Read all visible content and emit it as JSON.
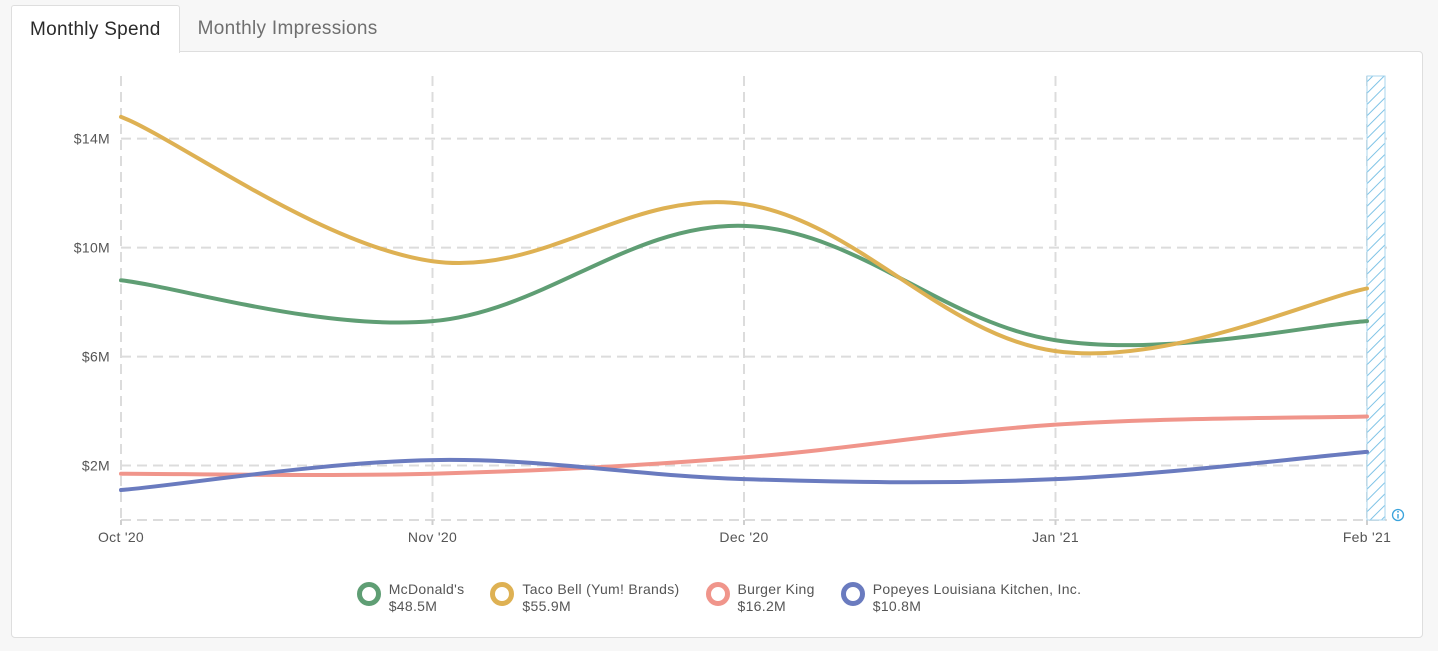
{
  "tabs": [
    {
      "label": "Monthly Spend",
      "active": true
    },
    {
      "label": "Monthly Impressions",
      "active": false
    }
  ],
  "info_icon": "info-icon",
  "chart_data": {
    "type": "line",
    "title": "Monthly Spend",
    "xlabel": "",
    "ylabel": "",
    "categories": [
      "Oct '20",
      "Nov '20",
      "Dec '20",
      "Jan '21",
      "Feb '21"
    ],
    "ylim": [
      0,
      16.3
    ],
    "yticks": [
      2,
      6,
      10,
      14
    ],
    "ytick_labels": [
      "$2M",
      "$6M",
      "$10M",
      "$14M"
    ],
    "grid": true,
    "legend_position": "bottom-center",
    "partial_period": "Feb '21",
    "series": [
      {
        "name": "McDonald's",
        "total": "$48.5M",
        "color": "#5f9e74",
        "values": [
          8.8,
          7.3,
          10.8,
          6.6,
          7.3
        ]
      },
      {
        "name": "Taco Bell (Yum! Brands)",
        "total": "$55.9M",
        "color": "#deb153",
        "values": [
          14.8,
          9.5,
          11.6,
          6.2,
          8.5
        ]
      },
      {
        "name": "Burger King",
        "total": "$16.2M",
        "color": "#f0958b",
        "values": [
          1.7,
          1.7,
          2.3,
          3.5,
          3.8
        ]
      },
      {
        "name": "Popeyes Louisiana Kitchen, Inc.",
        "total": "$10.8M",
        "color": "#6a7bbf",
        "values": [
          1.1,
          2.2,
          1.5,
          1.5,
          2.5
        ]
      }
    ]
  }
}
